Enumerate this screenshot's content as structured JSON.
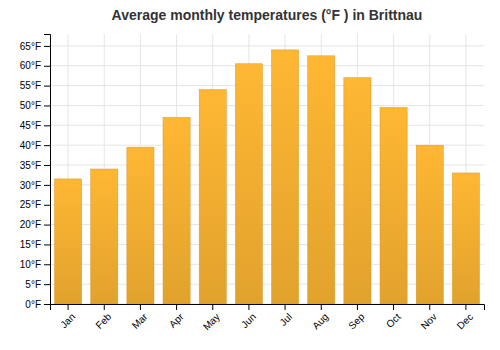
{
  "chart_data": {
    "type": "bar",
    "title": "Average monthly temperatures (°F ) in Brittnau",
    "categories": [
      "Jan",
      "Feb",
      "Mar",
      "Apr",
      "May",
      "Jun",
      "Jul",
      "Aug",
      "Sep",
      "Oct",
      "Nov",
      "Dec"
    ],
    "values": [
      31.5,
      34.0,
      39.5,
      47.0,
      54.0,
      60.5,
      64.0,
      62.5,
      57.0,
      49.5,
      40.0,
      33.0
    ],
    "color": "#FFB733",
    "ylim": [
      0,
      68
    ],
    "yticks": [
      {
        "value": 0,
        "label": "0°F"
      },
      {
        "value": 5,
        "label": "5°F"
      },
      {
        "value": 10,
        "label": "10°F"
      },
      {
        "value": 15,
        "label": "15°F"
      },
      {
        "value": 20,
        "label": "20°F"
      },
      {
        "value": 25,
        "label": "25°F"
      },
      {
        "value": 30,
        "label": "30°F"
      },
      {
        "value": 35,
        "label": "35°F"
      },
      {
        "value": 40,
        "label": "40°F"
      },
      {
        "value": 45,
        "label": "45°F"
      },
      {
        "value": 50,
        "label": "50°F"
      },
      {
        "value": 55,
        "label": "55°F"
      },
      {
        "value": 60,
        "label": "60°F"
      },
      {
        "value": 65,
        "label": "65°F"
      }
    ],
    "grid": true
  }
}
